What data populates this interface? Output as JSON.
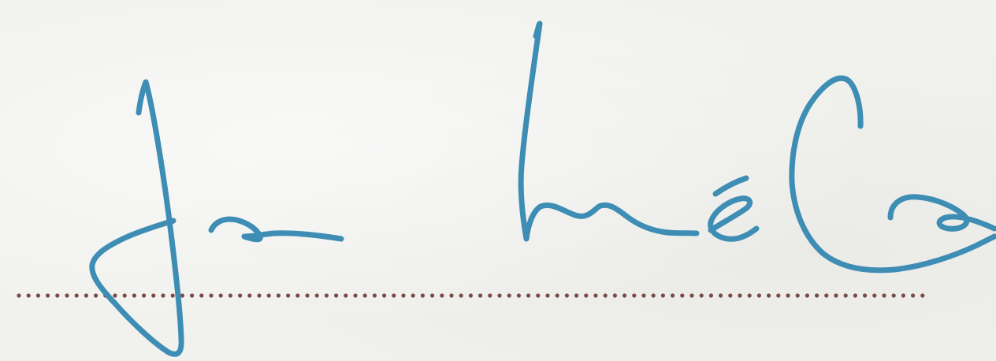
{
  "signature": {
    "text": "Jan Kmeťko",
    "ink_color": "#3e8db4",
    "dot_line_color": "#7a4a4a"
  }
}
